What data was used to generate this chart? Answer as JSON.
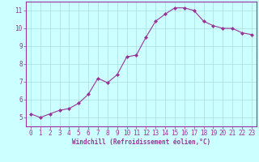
{
  "x": [
    0,
    1,
    2,
    3,
    4,
    5,
    6,
    7,
    8,
    9,
    10,
    11,
    12,
    13,
    14,
    15,
    16,
    17,
    18,
    19,
    20,
    21,
    22,
    23
  ],
  "y": [
    5.2,
    5.0,
    5.2,
    5.4,
    5.5,
    5.8,
    6.3,
    7.2,
    6.95,
    7.4,
    8.4,
    8.5,
    9.5,
    10.4,
    10.8,
    11.15,
    11.15,
    11.0,
    10.4,
    10.15,
    10.0,
    10.0,
    9.75,
    9.65
  ],
  "line_color": "#993399",
  "marker": "D",
  "marker_size": 2.0,
  "bg_color": "#ccffff",
  "grid_color": "#aadddd",
  "xlabel": "Windchill (Refroidissement éolien,°C)",
  "xlabel_color": "#993399",
  "tick_color": "#993399",
  "xlim": [
    -0.5,
    23.5
  ],
  "ylim": [
    4.5,
    11.5
  ],
  "xticks": [
    0,
    1,
    2,
    3,
    4,
    5,
    6,
    7,
    8,
    9,
    10,
    11,
    12,
    13,
    14,
    15,
    16,
    17,
    18,
    19,
    20,
    21,
    22,
    23
  ],
  "yticks": [
    5,
    6,
    7,
    8,
    9,
    10,
    11
  ],
  "spine_color": "#993399",
  "font_family": "monospace",
  "tick_fontsize": 5.5,
  "xlabel_fontsize": 5.5,
  "line_width": 0.8
}
